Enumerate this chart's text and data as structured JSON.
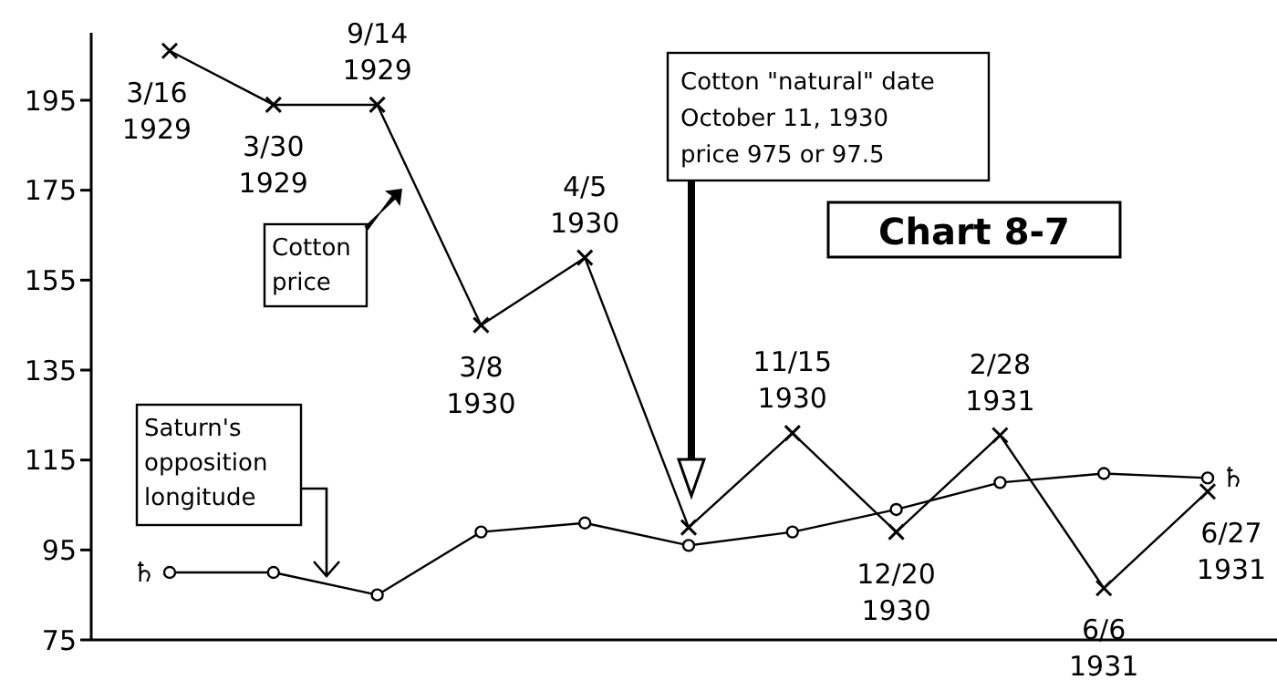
{
  "chart_data": {
    "type": "line",
    "title": "Chart 8-7",
    "categories": [
      null,
      null,
      null,
      null,
      null,
      null,
      null,
      null,
      null,
      null,
      null
    ],
    "series": [
      {
        "name": "Cotton\nprice",
        "color": "#000000",
        "marker": "cross",
        "values": [
          206,
          194,
          194,
          145,
          160,
          100,
          121,
          99,
          120.5,
          86.5,
          108
        ],
        "value_labels": [
          "3/16\n1929",
          "3/30\n1929",
          "9/14\n1929",
          "3/8\n1930",
          "4/5\n1930",
          null,
          "11/15\n1930",
          "12/20\n1930",
          "2/28\n1931",
          "6/6\n1931",
          "6/27\n1931"
        ]
      },
      {
        "name": "Saturn's\nopposition\nlongitude",
        "color": "#000000",
        "marker": "circle",
        "values": [
          90,
          90,
          85,
          99,
          101,
          96,
          99,
          104,
          110,
          112,
          111
        ]
      }
    ],
    "ylim": [
      75,
      210
    ],
    "yticks": [
      75,
      95,
      115,
      135,
      155,
      175,
      195
    ],
    "grid": false,
    "tick_labels": "y",
    "annotations": [
      "Cotton \"natural\" date\nOctober 11, 1930\nprice 975 or 97.5",
      "♄",
      "♄"
    ]
  }
}
